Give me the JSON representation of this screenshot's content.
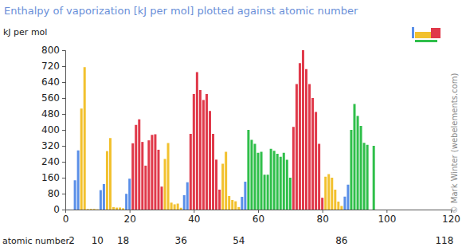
{
  "chart_data": {
    "type": "bar",
    "title": "Enthalpy of vaporization [kJ per mol] plotted against atomic number",
    "ylabel": "kJ per mol",
    "xlabel": "atomic number",
    "source": "© Mark Winter (webelements.com)",
    "period_ends": [
      2,
      10,
      18,
      36,
      54,
      86,
      118
    ],
    "x": [
      1,
      2,
      3,
      4,
      5,
      6,
      7,
      8,
      9,
      10,
      11,
      12,
      13,
      14,
      15,
      16,
      17,
      18,
      19,
      20,
      21,
      22,
      23,
      24,
      25,
      26,
      27,
      28,
      29,
      30,
      31,
      32,
      33,
      34,
      35,
      36,
      37,
      38,
      39,
      40,
      41,
      42,
      43,
      44,
      45,
      46,
      47,
      48,
      49,
      50,
      51,
      52,
      53,
      54,
      55,
      56,
      57,
      58,
      59,
      60,
      61,
      62,
      63,
      64,
      65,
      66,
      67,
      68,
      69,
      70,
      71,
      72,
      73,
      74,
      75,
      76,
      77,
      78,
      79,
      80,
      81,
      82,
      83,
      84,
      85,
      86,
      87,
      88,
      89,
      90,
      91,
      92,
      93,
      94,
      95,
      96,
      97,
      98,
      99,
      100,
      101,
      102,
      103,
      104,
      105,
      106,
      107,
      108,
      109,
      110,
      111,
      112,
      113,
      114,
      115,
      116,
      117,
      118
    ],
    "values": [
      0.452,
      0.083,
      147,
      297,
      507,
      715,
      2.79,
      3.41,
      3.27,
      1.71,
      97.42,
      128,
      293.4,
      359,
      12.4,
      9.8,
      10.2,
      6.43,
      79.1,
      155,
      332.7,
      425,
      453,
      339.5,
      220.5,
      347.5,
      375,
      378,
      300.3,
      115.3,
      254,
      334,
      34.76,
      26.3,
      29.96,
      9.03,
      72.216,
      137,
      380,
      580,
      690,
      600,
      550,
      580,
      495,
      380,
      250.58,
      100,
      230,
      290,
      68,
      48,
      41.57,
      12.57,
      63.9,
      140,
      400,
      350,
      330,
      285,
      290,
      175,
      175,
      305,
      295,
      280,
      265,
      285,
      250,
      160,
      415,
      630,
      735,
      800,
      705,
      630,
      560,
      490,
      330,
      59.2,
      165,
      178,
      160,
      100,
      40,
      18.1,
      65,
      125,
      400,
      530,
      470,
      420,
      335,
      325,
      null,
      320,
      null,
      null,
      null,
      null,
      null,
      null,
      null,
      null,
      null,
      null,
      null,
      null,
      null,
      null,
      null,
      null,
      null,
      null,
      null,
      null,
      null,
      null
    ],
    "colors": [
      "#5a8fe8",
      "#5a8fe8",
      "#5a8fe8",
      "#5a8fe8",
      "#f2c12e",
      "#f2c12e",
      "#f2c12e",
      "#f2c12e",
      "#f2c12e",
      "#f2c12e",
      "#5a8fe8",
      "#5a8fe8",
      "#f2c12e",
      "#f2c12e",
      "#f2c12e",
      "#f2c12e",
      "#f2c12e",
      "#f2c12e",
      "#5a8fe8",
      "#5a8fe8",
      "#e0394a",
      "#e0394a",
      "#e0394a",
      "#e0394a",
      "#e0394a",
      "#e0394a",
      "#e0394a",
      "#e0394a",
      "#e0394a",
      "#e0394a",
      "#f2c12e",
      "#f2c12e",
      "#f2c12e",
      "#f2c12e",
      "#f2c12e",
      "#f2c12e",
      "#5a8fe8",
      "#5a8fe8",
      "#e0394a",
      "#e0394a",
      "#e0394a",
      "#e0394a",
      "#e0394a",
      "#e0394a",
      "#e0394a",
      "#e0394a",
      "#e0394a",
      "#e0394a",
      "#f2c12e",
      "#f2c12e",
      "#f2c12e",
      "#f2c12e",
      "#f2c12e",
      "#f2c12e",
      "#5a8fe8",
      "#5a8fe8",
      "#2fbf4a",
      "#2fbf4a",
      "#2fbf4a",
      "#2fbf4a",
      "#2fbf4a",
      "#2fbf4a",
      "#2fbf4a",
      "#2fbf4a",
      "#2fbf4a",
      "#2fbf4a",
      "#2fbf4a",
      "#2fbf4a",
      "#2fbf4a",
      "#2fbf4a",
      "#e0394a",
      "#e0394a",
      "#e0394a",
      "#e0394a",
      "#e0394a",
      "#e0394a",
      "#e0394a",
      "#e0394a",
      "#e0394a",
      "#e0394a",
      "#f2c12e",
      "#f2c12e",
      "#f2c12e",
      "#f2c12e",
      "#f2c12e",
      "#f2c12e",
      "#5a8fe8",
      "#5a8fe8",
      "#2fbf4a",
      "#2fbf4a",
      "#2fbf4a",
      "#2fbf4a",
      "#2fbf4a",
      "#2fbf4a",
      "#2fbf4a",
      "#2fbf4a",
      "#2fbf4a",
      "#2fbf4a",
      "#2fbf4a",
      "#2fbf4a",
      "#2fbf4a",
      "#2fbf4a",
      "#e0394a",
      "#e0394a",
      "#e0394a",
      "#e0394a",
      "#e0394a",
      "#e0394a",
      "#e0394a",
      "#e0394a",
      "#e0394a",
      "#e0394a",
      "#f2c12e",
      "#f2c12e",
      "#f2c12e",
      "#f2c12e",
      "#f2c12e",
      "#f2c12e"
    ],
    "xlim": [
      0,
      120
    ],
    "xticks": [
      0,
      20,
      40,
      60,
      80,
      100,
      120
    ],
    "ylim": [
      0,
      800
    ],
    "yticks": [
      0,
      80,
      160,
      240,
      320,
      400,
      480,
      560,
      640,
      720,
      800
    ],
    "grid": false
  }
}
